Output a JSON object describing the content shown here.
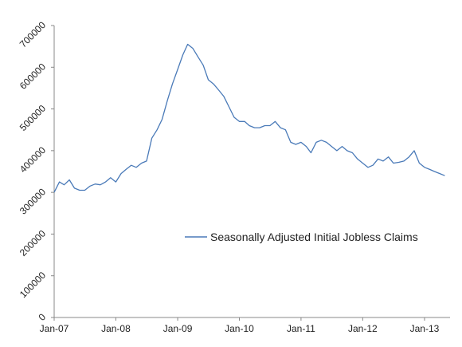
{
  "chart_data": {
    "type": "line",
    "title": "",
    "xlabel": "",
    "ylabel": "",
    "ylim": [
      0,
      700000
    ],
    "yticks": [
      "0",
      "100000",
      "200000",
      "300000",
      "400000",
      "500000",
      "600000",
      "700000"
    ],
    "xticks": [
      "Jan-07",
      "Jan-08",
      "Jan-09",
      "Jan-10",
      "Jan-11",
      "Jan-12",
      "Jan-13"
    ],
    "grid": false,
    "legend_position": "center-right",
    "color": "#4a7ab8",
    "series": [
      {
        "name": "Seasonally Adjusted Initial Jobless Claims",
        "points": [
          [
            "2007-01",
            300000
          ],
          [
            "2007-02",
            325000
          ],
          [
            "2007-03",
            318000
          ],
          [
            "2007-04",
            330000
          ],
          [
            "2007-05",
            310000
          ],
          [
            "2007-06",
            305000
          ],
          [
            "2007-07",
            305000
          ],
          [
            "2007-08",
            315000
          ],
          [
            "2007-09",
            320000
          ],
          [
            "2007-10",
            318000
          ],
          [
            "2007-11",
            325000
          ],
          [
            "2007-12",
            335000
          ],
          [
            "2008-01",
            325000
          ],
          [
            "2008-02",
            345000
          ],
          [
            "2008-03",
            355000
          ],
          [
            "2008-04",
            365000
          ],
          [
            "2008-05",
            360000
          ],
          [
            "2008-06",
            370000
          ],
          [
            "2008-07",
            375000
          ],
          [
            "2008-08",
            430000
          ],
          [
            "2008-09",
            450000
          ],
          [
            "2008-10",
            475000
          ],
          [
            "2008-11",
            520000
          ],
          [
            "2008-12",
            560000
          ],
          [
            "2009-01",
            595000
          ],
          [
            "2009-02",
            630000
          ],
          [
            "2009-03",
            655000
          ],
          [
            "2009-04",
            645000
          ],
          [
            "2009-05",
            625000
          ],
          [
            "2009-06",
            605000
          ],
          [
            "2009-07",
            570000
          ],
          [
            "2009-08",
            560000
          ],
          [
            "2009-09",
            545000
          ],
          [
            "2009-10",
            530000
          ],
          [
            "2009-11",
            505000
          ],
          [
            "2009-12",
            480000
          ],
          [
            "2010-01",
            470000
          ],
          [
            "2010-02",
            470000
          ],
          [
            "2010-03",
            460000
          ],
          [
            "2010-04",
            455000
          ],
          [
            "2010-05",
            455000
          ],
          [
            "2010-06",
            460000
          ],
          [
            "2010-07",
            460000
          ],
          [
            "2010-08",
            470000
          ],
          [
            "2010-09",
            455000
          ],
          [
            "2010-10",
            450000
          ],
          [
            "2010-11",
            420000
          ],
          [
            "2010-12",
            415000
          ],
          [
            "2011-01",
            420000
          ],
          [
            "2011-02",
            410000
          ],
          [
            "2011-03",
            395000
          ],
          [
            "2011-04",
            420000
          ],
          [
            "2011-05",
            425000
          ],
          [
            "2011-06",
            420000
          ],
          [
            "2011-07",
            410000
          ],
          [
            "2011-08",
            400000
          ],
          [
            "2011-09",
            410000
          ],
          [
            "2011-10",
            400000
          ],
          [
            "2011-11",
            395000
          ],
          [
            "2011-12",
            380000
          ],
          [
            "2012-01",
            370000
          ],
          [
            "2012-02",
            360000
          ],
          [
            "2012-03",
            365000
          ],
          [
            "2012-04",
            380000
          ],
          [
            "2012-05",
            375000
          ],
          [
            "2012-06",
            385000
          ],
          [
            "2012-07",
            370000
          ],
          [
            "2012-08",
            372000
          ],
          [
            "2012-09",
            375000
          ],
          [
            "2012-10",
            385000
          ],
          [
            "2012-11",
            400000
          ],
          [
            "2012-12",
            370000
          ],
          [
            "2013-01",
            360000
          ],
          [
            "2013-02",
            355000
          ],
          [
            "2013-03",
            350000
          ],
          [
            "2013-04",
            345000
          ],
          [
            "2013-05",
            340000
          ]
        ]
      }
    ]
  }
}
